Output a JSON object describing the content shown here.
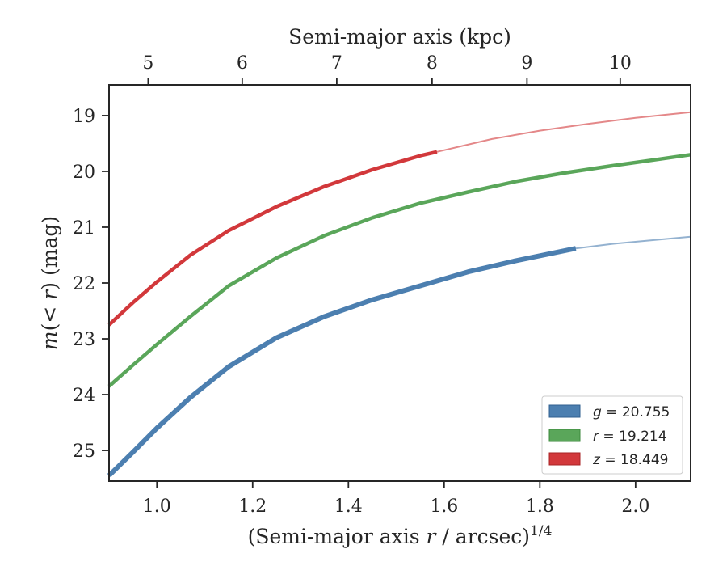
{
  "chart_data": {
    "type": "line",
    "xaxis": {
      "label_prefix": "(Semi-major axis ",
      "label_var": "r",
      "label_mid": " / arcsec)",
      "label_exp": "1/4",
      "lim": [
        0.9,
        2.115
      ],
      "ticks": [
        1.0,
        1.2,
        1.4,
        1.6,
        1.8,
        2.0
      ],
      "tick_labels": [
        "1.0",
        "1.2",
        "1.4",
        "1.6",
        "1.8",
        "2.0"
      ]
    },
    "top_xaxis": {
      "label": "Semi-major axis (kpc)",
      "ticks": [
        0.9817,
        1.1782,
        1.3757,
        1.5748,
        1.7731,
        1.9679
      ],
      "tick_labels": [
        "5",
        "6",
        "7",
        "8",
        "9",
        "10"
      ]
    },
    "yaxis": {
      "label_var": "m",
      "label_open": "(",
      "label_lt": "< ",
      "label_r": "r",
      "label_close": ")",
      "label_unit": " (mag)",
      "lim": [
        25.55,
        18.45
      ],
      "inverted": true,
      "ticks": [
        19,
        20,
        21,
        22,
        23,
        24,
        25
      ],
      "tick_labels": [
        "19",
        "20",
        "21",
        "22",
        "23",
        "24",
        "25"
      ]
    },
    "series": [
      {
        "name": "g",
        "legend_value": "20.755",
        "color": "#4c7fb0",
        "solid_end_x": 1.875,
        "points": [
          [
            0.9,
            25.45
          ],
          [
            0.95,
            25.03
          ],
          [
            1.0,
            24.6
          ],
          [
            1.07,
            24.05
          ],
          [
            1.15,
            23.5
          ],
          [
            1.25,
            22.98
          ],
          [
            1.35,
            22.6
          ],
          [
            1.45,
            22.3
          ],
          [
            1.55,
            22.05
          ],
          [
            1.65,
            21.8
          ],
          [
            1.75,
            21.6
          ],
          [
            1.875,
            21.38
          ],
          [
            1.95,
            21.3
          ],
          [
            2.05,
            21.22
          ],
          [
            2.115,
            21.17
          ]
        ]
      },
      {
        "name": "r",
        "legend_value": "19.214",
        "color": "#5aa65a",
        "solid_end_x": 2.115,
        "points": [
          [
            0.9,
            23.85
          ],
          [
            0.95,
            23.47
          ],
          [
            1.0,
            23.1
          ],
          [
            1.07,
            22.6
          ],
          [
            1.15,
            22.05
          ],
          [
            1.25,
            21.55
          ],
          [
            1.35,
            21.15
          ],
          [
            1.45,
            20.83
          ],
          [
            1.55,
            20.57
          ],
          [
            1.65,
            20.37
          ],
          [
            1.75,
            20.18
          ],
          [
            1.85,
            20.03
          ],
          [
            1.95,
            19.9
          ],
          [
            2.05,
            19.78
          ],
          [
            2.115,
            19.7
          ]
        ]
      },
      {
        "name": "z",
        "legend_value": "18.449",
        "color": "#d2383b",
        "solid_end_x": 1.585,
        "points": [
          [
            0.9,
            22.75
          ],
          [
            0.95,
            22.35
          ],
          [
            1.0,
            21.98
          ],
          [
            1.07,
            21.5
          ],
          [
            1.15,
            21.06
          ],
          [
            1.25,
            20.63
          ],
          [
            1.35,
            20.27
          ],
          [
            1.45,
            19.97
          ],
          [
            1.55,
            19.72
          ],
          [
            1.585,
            19.65
          ],
          [
            1.7,
            19.42
          ],
          [
            1.8,
            19.27
          ],
          [
            1.9,
            19.15
          ],
          [
            2.0,
            19.04
          ],
          [
            2.115,
            18.94
          ]
        ]
      }
    ],
    "legend": {
      "position": "lower-right",
      "entries": [
        {
          "var": "g",
          "eq": " = ",
          "value": "20.755"
        },
        {
          "var": "r",
          "eq": " = ",
          "value": "19.214"
        },
        {
          "var": "z",
          "eq": " = ",
          "value": "18.449"
        }
      ]
    },
    "grid": false
  }
}
